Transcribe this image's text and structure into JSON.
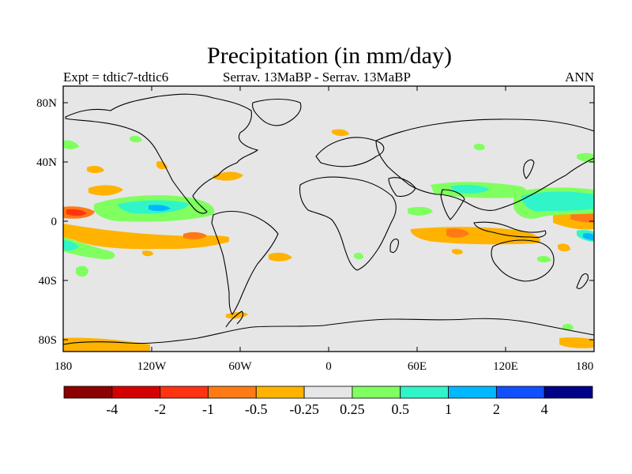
{
  "title": "Precipitation (in mm/day)",
  "subtitle_left": "Expt = tdtic7-tdtic6",
  "subtitle_center": "Serrav.   13MaBP - Serrav.   13MaBP",
  "subtitle_right": "ANN",
  "lat_ticks": [
    "80N",
    "40N",
    "0",
    "40S",
    "80S"
  ],
  "lon_ticks": [
    "180",
    "120W",
    "60W",
    "0",
    "60E",
    "120E",
    "180"
  ],
  "colorbar": {
    "colors": [
      "#8b0000",
      "#d40000",
      "#ff3311",
      "#ff7a14",
      "#ffb300",
      "#e6e6e6",
      "#80ff60",
      "#30f5c8",
      "#00b8ff",
      "#1050ff",
      "#000088"
    ],
    "labels": [
      "-4",
      "-2",
      "-1",
      "-0.5",
      "-0.25",
      "0.25",
      "0.5",
      "1",
      "2",
      "4"
    ]
  }
}
